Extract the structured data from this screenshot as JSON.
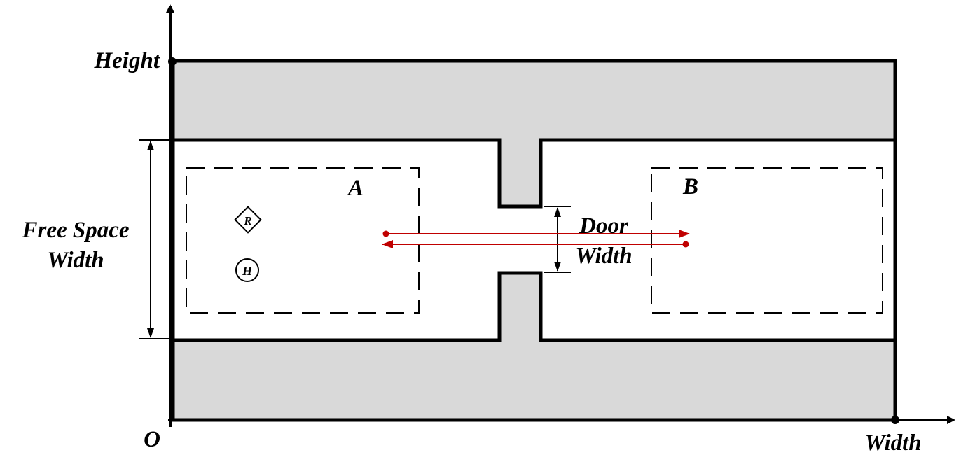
{
  "labels": {
    "origin": "O",
    "height_axis": "Height",
    "width_axis": "Width",
    "free_space_line1": "Free Space",
    "free_space_line2": "Width",
    "door_line1": "Door",
    "door_line2": "Width",
    "region_a": "A",
    "region_b": "B",
    "robot_marker": "R",
    "human_marker": "H"
  },
  "colors": {
    "wall_fill": "#d9d9d9",
    "outline": "#000000",
    "path_arrow": "#c00000",
    "background": "#ffffff"
  }
}
